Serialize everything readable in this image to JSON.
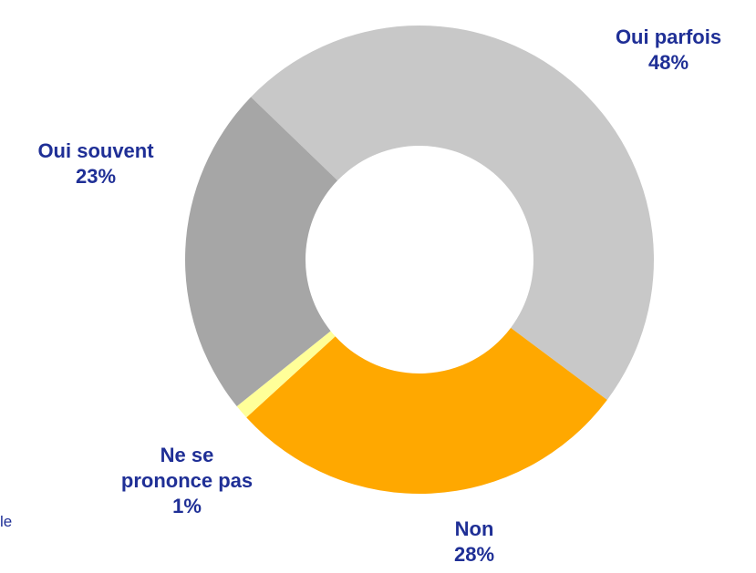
{
  "chart_data": {
    "type": "donut",
    "categories": [
      "Oui parfois",
      "Non",
      "Ne se prononce pas",
      "Oui souvent"
    ],
    "values": [
      48,
      28,
      1,
      23
    ],
    "value_labels": [
      "48%",
      "28%",
      "1%",
      "23%"
    ],
    "colors": [
      "#c8c8c8",
      "#ffa800",
      "#ffff99",
      "#a6a6a6"
    ],
    "footnote": "le"
  }
}
